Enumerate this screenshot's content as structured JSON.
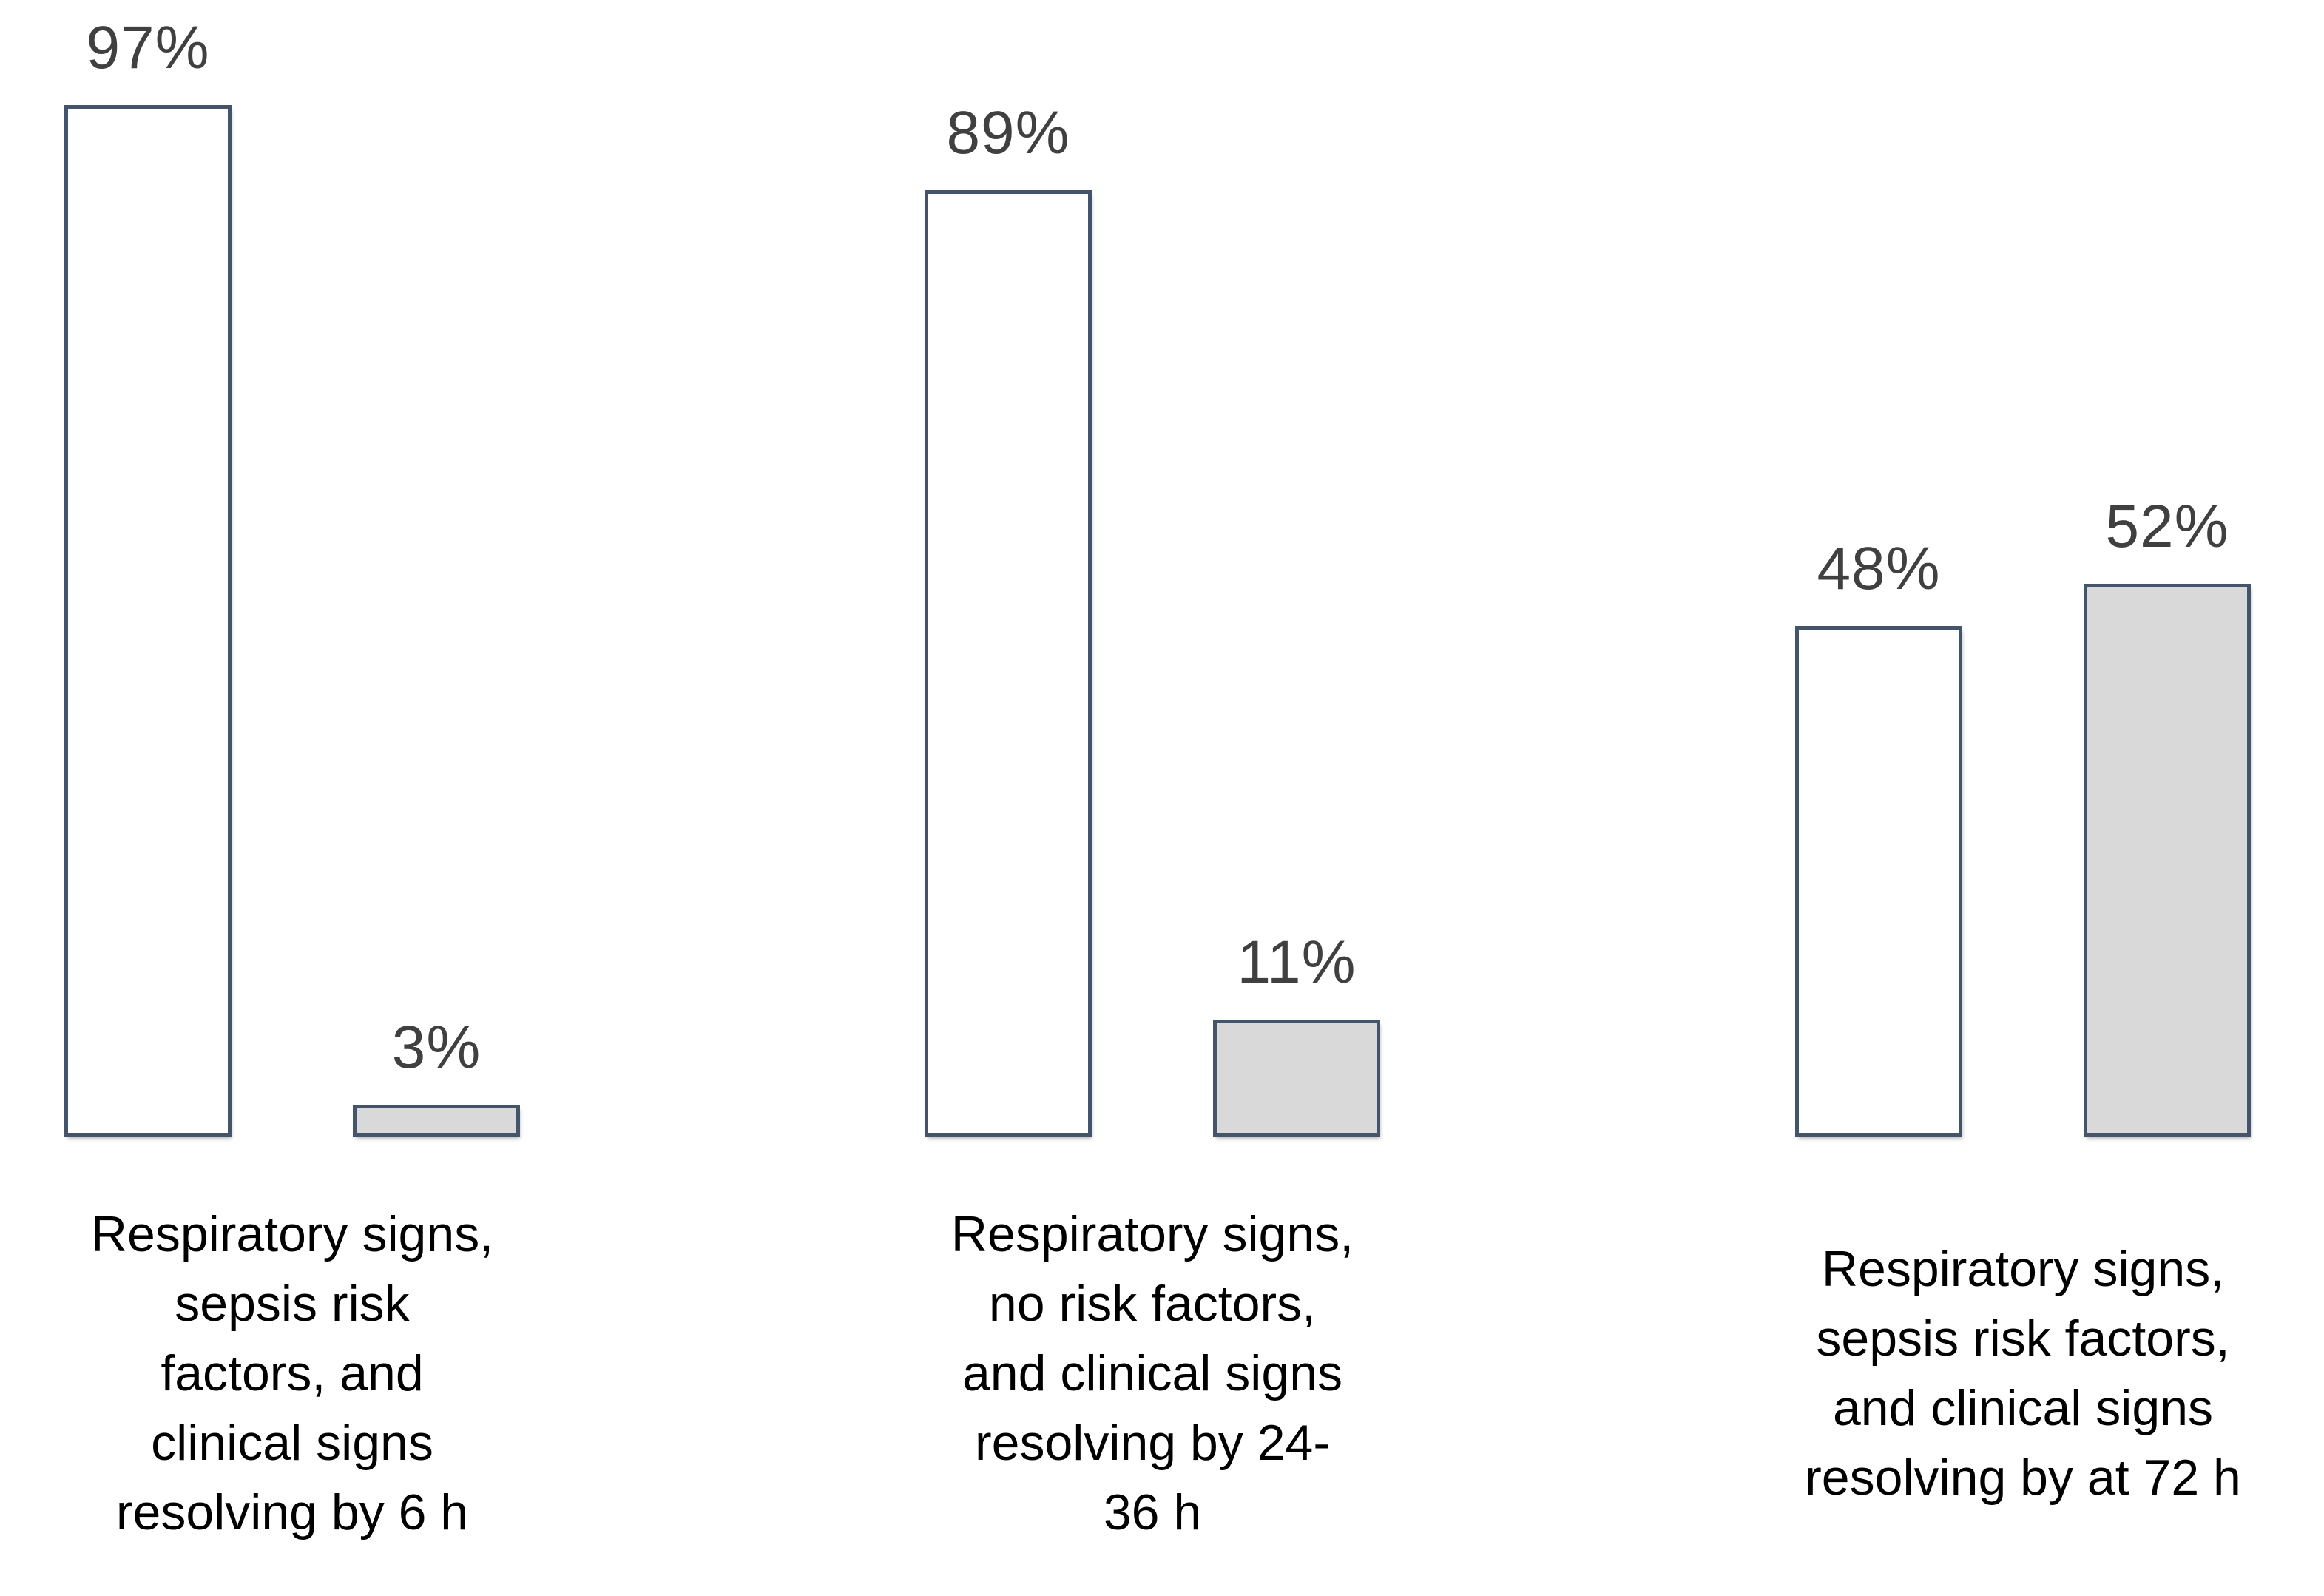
{
  "chart_data": {
    "type": "bar",
    "title": "",
    "xlabel": "",
    "ylabel": "",
    "value_unit": "percent",
    "ylim": [
      0,
      100
    ],
    "grid": false,
    "axes_visible": false,
    "legend_position": "none",
    "colors": {
      "background": "#FFFFFF",
      "bar_border": "#44546A",
      "white_series_fill": "#FFFFFF",
      "gray_series_fill": "#D9D9D9",
      "value_label_text": "#404040",
      "category_label_text": "#000000"
    },
    "series_names": [
      "white",
      "gray"
    ],
    "groups": [
      {
        "category": "Respiratory signs, sepsis risk factors, and clinical signs resolving by 6 h",
        "category_lines": [
          "Respiratory signs,",
          "sepsis risk",
          "factors, and",
          "clinical signs",
          "resolving by 6 h"
        ],
        "bars": [
          {
            "series": "white",
            "value": 97,
            "label": "97%"
          },
          {
            "series": "gray",
            "value": 3,
            "label": "3%"
          }
        ]
      },
      {
        "category": "Respiratory signs, no risk factors, and clinical signs resolving by 24-36 h",
        "category_lines": [
          "Respiratory signs,",
          "no risk factors,",
          "and clinical signs",
          "resolving by 24-",
          "36 h"
        ],
        "bars": [
          {
            "series": "white",
            "value": 89,
            "label": "89%"
          },
          {
            "series": "gray",
            "value": 11,
            "label": "11%"
          }
        ]
      },
      {
        "category": "Respiratory signs, sepsis risk factors, and clinical signs resolving by at 72 h",
        "category_lines": [
          "Respiratory signs,",
          "sepsis risk factors,",
          "and clinical signs",
          "resolving by at 72 h"
        ],
        "bars": [
          {
            "series": "white",
            "value": 48,
            "label": "48%"
          },
          {
            "series": "gray",
            "value": 52,
            "label": "52%"
          }
        ]
      }
    ]
  }
}
